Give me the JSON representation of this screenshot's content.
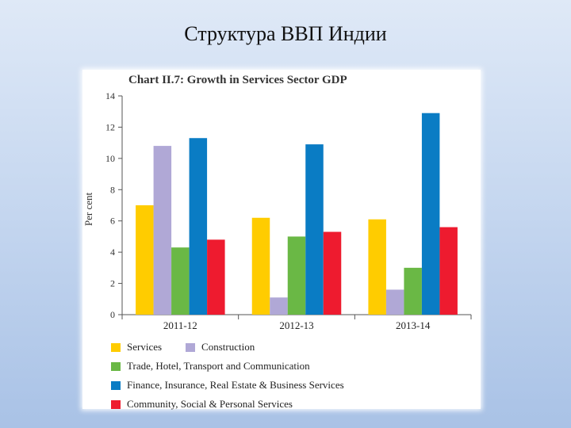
{
  "slide": {
    "title": "Структура ВВП Индии"
  },
  "chart_data": {
    "type": "bar",
    "title": "Chart II.7: Growth in Services Sector GDP",
    "ylabel": "Per cent",
    "xlabel": "",
    "ylim": [
      0,
      14
    ],
    "yticks": [
      0,
      2,
      4,
      6,
      8,
      10,
      12,
      14
    ],
    "categories": [
      "2011-12",
      "2012-13",
      "2013-14"
    ],
    "series": [
      {
        "name": "Services",
        "color": "#ffcc00",
        "values": [
          7.0,
          6.2,
          6.1
        ]
      },
      {
        "name": "Construction",
        "color": "#b0a8d6",
        "values": [
          10.8,
          1.1,
          1.6
        ]
      },
      {
        "name": "Trade, Hotel, Transport and Communication",
        "color": "#6ab845",
        "values": [
          4.3,
          5.0,
          3.0
        ]
      },
      {
        "name": "Finance, Insurance, Real Estate & Business Services",
        "color": "#0a7cc4",
        "values": [
          11.3,
          10.9,
          12.9
        ]
      },
      {
        "name": "Community, Social & Personal Services",
        "color": "#ee1b2f",
        "values": [
          4.8,
          5.3,
          5.6
        ]
      }
    ],
    "legend_position": "bottom",
    "grid": false
  }
}
